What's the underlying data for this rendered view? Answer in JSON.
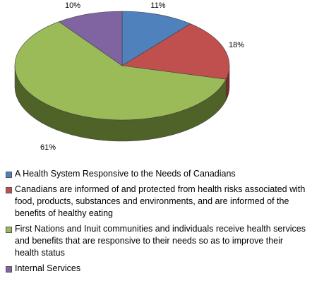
{
  "chart_data": {
    "type": "pie",
    "style": "3d",
    "series": [
      {
        "label": "A Health System Responsive to the Needs of Canadians",
        "value": 11,
        "display": "11%",
        "color": "#4F81BD",
        "side_color": "#2C4D75"
      },
      {
        "label": "Canadians are informed of and protected from health risks associated with food, products, substances and environments, and are informed of the benefits of healthy eating",
        "value": 18,
        "display": "18%",
        "color": "#C0504D",
        "side_color": "#772C2A"
      },
      {
        "label": "First Nations and Inuit communities and individuals receive health services and benefits that are responsive to their needs so as to improve their health status",
        "value": 61,
        "display": "61%",
        "color": "#9BBB59",
        "side_color": "#4F6228"
      },
      {
        "label": "Internal Services",
        "value": 10,
        "display": "10%",
        "color": "#8064A2",
        "side_color": "#4D3B62"
      }
    ],
    "legend_position": "bottom"
  }
}
